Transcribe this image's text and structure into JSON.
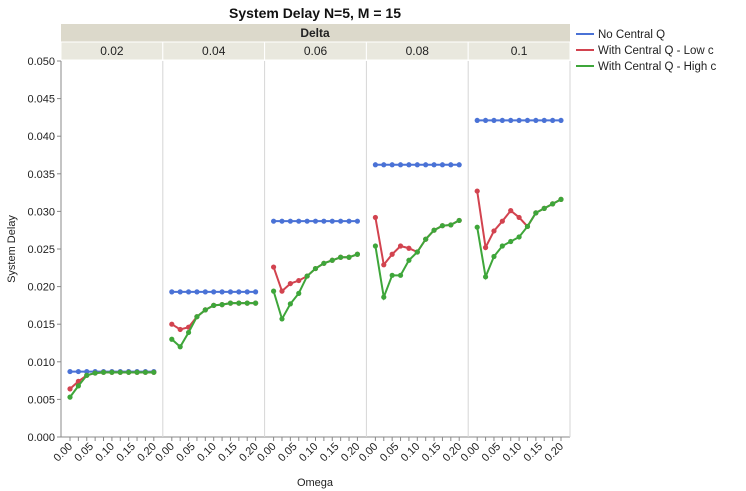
{
  "chart_data": {
    "type": "line",
    "title": "System Delay N=5, M = 15",
    "facet_label": "Delta",
    "panels": [
      "0.02",
      "0.04",
      "0.06",
      "0.08",
      "0.1"
    ],
    "xlabel": "Omega",
    "ylabel": "System Delay",
    "x": [
      0.0,
      0.02,
      0.04,
      0.06,
      0.08,
      0.1,
      0.12,
      0.14,
      0.16,
      0.18,
      0.2
    ],
    "x_ticks": [
      "0.00",
      "0.05",
      "0.10",
      "0.15",
      "0.20"
    ],
    "y_ticks": [
      "0.000",
      "0.005",
      "0.010",
      "0.015",
      "0.020",
      "0.025",
      "0.030",
      "0.035",
      "0.040",
      "0.045",
      "0.050"
    ],
    "ylim": [
      0,
      0.05
    ],
    "grid": false,
    "legend_position": "right",
    "series": [
      {
        "name": "No Central Q",
        "color": "#4a72d6",
        "values": [
          [
            0.0087,
            0.0087,
            0.0087,
            0.0087,
            0.0087,
            0.0087,
            0.0087,
            0.0087,
            0.0087,
            0.0087,
            0.0087
          ],
          [
            0.0193,
            0.0193,
            0.0193,
            0.0193,
            0.0193,
            0.0193,
            0.0193,
            0.0193,
            0.0193,
            0.0193,
            0.0193
          ],
          [
            0.0287,
            0.0287,
            0.0287,
            0.0287,
            0.0287,
            0.0287,
            0.0287,
            0.0287,
            0.0287,
            0.0287,
            0.0287
          ],
          [
            0.0362,
            0.0362,
            0.0362,
            0.0362,
            0.0362,
            0.0362,
            0.0362,
            0.0362,
            0.0362,
            0.0362,
            0.0362
          ],
          [
            0.0421,
            0.0421,
            0.0421,
            0.0421,
            0.0421,
            0.0421,
            0.0421,
            0.0421,
            0.0421,
            0.0421,
            0.0421
          ]
        ]
      },
      {
        "name": "With Central Q - Low c",
        "color": "#d2434f",
        "values": [
          [
            0.0064,
            0.0074,
            0.0082,
            0.0085,
            0.0086,
            0.0086,
            0.0086,
            0.0086,
            0.0086,
            0.0086,
            0.0086
          ],
          [
            0.015,
            0.0143,
            0.0146,
            0.016,
            0.0169,
            0.0175,
            0.0176,
            0.0178,
            0.0178,
            0.0178,
            0.0178
          ],
          [
            0.0226,
            0.0194,
            0.0204,
            0.0208,
            0.0214,
            0.0224,
            0.0231,
            0.0235,
            0.0239,
            0.0239,
            0.0243
          ],
          [
            0.0292,
            0.0229,
            0.0243,
            0.0254,
            0.0251,
            0.0246,
            0.0263,
            0.0275,
            0.0281,
            0.0282,
            0.0288
          ],
          [
            0.0327,
            0.0252,
            0.0274,
            0.0287,
            0.0301,
            0.0292,
            0.028,
            0.0298,
            0.0304,
            0.031,
            0.0316
          ]
        ]
      },
      {
        "name": "With Central Q - High c",
        "color": "#3ea63a",
        "values": [
          [
            0.0053,
            0.0068,
            0.0082,
            0.0085,
            0.0086,
            0.0086,
            0.0086,
            0.0086,
            0.0086,
            0.0086,
            0.0086
          ],
          [
            0.013,
            0.012,
            0.0139,
            0.016,
            0.0169,
            0.0175,
            0.0176,
            0.0178,
            0.0178,
            0.0178,
            0.0178
          ],
          [
            0.0194,
            0.0157,
            0.0177,
            0.0191,
            0.0214,
            0.0224,
            0.0231,
            0.0235,
            0.0239,
            0.0239,
            0.0243
          ],
          [
            0.0254,
            0.0186,
            0.0215,
            0.0215,
            0.0235,
            0.0246,
            0.0263,
            0.0275,
            0.0281,
            0.0282,
            0.0288
          ],
          [
            0.0279,
            0.0213,
            0.024,
            0.0254,
            0.026,
            0.0266,
            0.028,
            0.0298,
            0.0304,
            0.031,
            0.0316
          ]
        ]
      }
    ]
  }
}
